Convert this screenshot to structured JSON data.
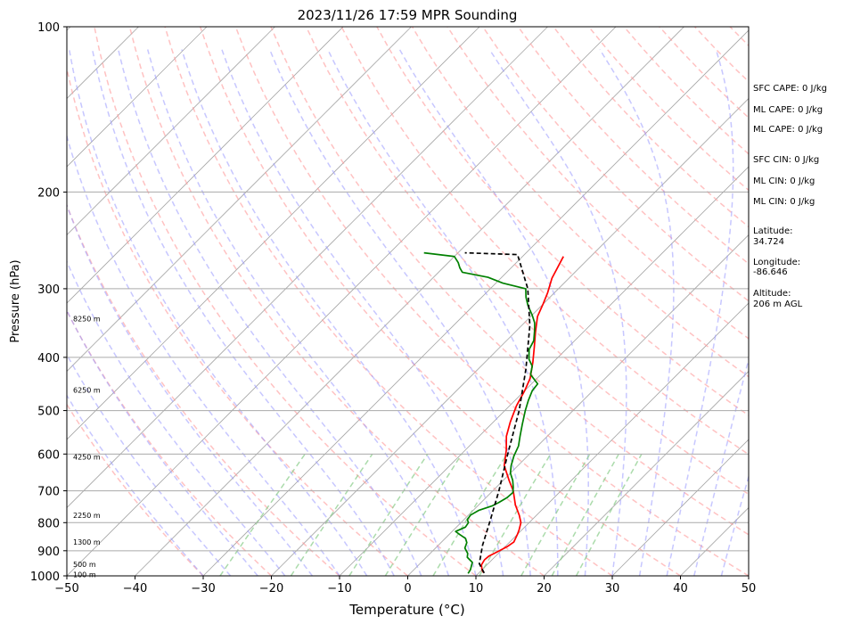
{
  "chart_data": {
    "type": "line",
    "title": "2023/11/26 17:59 MPR Sounding",
    "xlabel": "Temperature (°C)",
    "ylabel": "Pressure (hPa)",
    "xlim": [
      -50,
      50
    ],
    "ylim": [
      1000,
      100
    ],
    "y_scale": "log",
    "x_ticks": [
      "−50",
      "−40",
      "−30",
      "−20",
      "−10",
      "0",
      "10",
      "20",
      "30",
      "40",
      "50"
    ],
    "y_ticks": [
      "100",
      "200",
      "300",
      "400",
      "500",
      "600",
      "700",
      "800",
      "900",
      "1000"
    ],
    "height_labels": [
      {
        "p": 995,
        "label": "100 m"
      },
      {
        "p": 953,
        "label": "500 m"
      },
      {
        "p": 867,
        "label": "1300 m"
      },
      {
        "p": 776,
        "label": "2250 m"
      },
      {
        "p": 607,
        "label": "4250 m"
      },
      {
        "p": 459,
        "label": "6250 m"
      },
      {
        "p": 340,
        "label": "8250 m"
      }
    ],
    "series": [
      {
        "color": "#ff0000",
        "points": [
          [
            10.6,
            986
          ],
          [
            10.0,
            975
          ],
          [
            9.2,
            955
          ],
          [
            8.9,
            935
          ],
          [
            9.0,
            920
          ],
          [
            9.6,
            905
          ],
          [
            10.3,
            885
          ],
          [
            10.6,
            868
          ],
          [
            10.0,
            840
          ],
          [
            9.6,
            825
          ],
          [
            8.8,
            800
          ],
          [
            7.5,
            776
          ],
          [
            5.4,
            743
          ],
          [
            3.0,
            700
          ],
          [
            1.0,
            672
          ],
          [
            -2.0,
            630
          ],
          [
            -4.0,
            590
          ],
          [
            -6.0,
            557
          ],
          [
            -7.5,
            525
          ],
          [
            -9.0,
            490
          ],
          [
            -10.0,
            460
          ],
          [
            -11.0,
            437
          ],
          [
            -13.0,
            408
          ],
          [
            -15.0,
            383
          ],
          [
            -17.0,
            360
          ],
          [
            -19.0,
            337
          ],
          [
            -20.0,
            320
          ],
          [
            -21.0,
            305
          ],
          [
            -22.5,
            287
          ],
          [
            -24.0,
            262
          ]
        ]
      },
      {
        "color": "#008000",
        "points": [
          [
            8.5,
            990
          ],
          [
            8.3,
            975
          ],
          [
            7.9,
            960
          ],
          [
            7.5,
            945
          ],
          [
            6.0,
            925
          ],
          [
            5.5,
            910
          ],
          [
            4.3,
            890
          ],
          [
            3.8,
            870
          ],
          [
            3.0,
            855
          ],
          [
            1.5,
            840
          ],
          [
            0.5,
            830
          ],
          [
            1.3,
            815
          ],
          [
            1.1,
            800
          ],
          [
            0.5,
            790
          ],
          [
            0.3,
            775
          ],
          [
            0.8,
            760
          ],
          [
            2.1,
            746
          ],
          [
            2.6,
            735
          ],
          [
            3.1,
            720
          ],
          [
            3.2,
            705
          ],
          [
            2.5,
            690
          ],
          [
            1.4,
            670
          ],
          [
            0.0,
            650
          ],
          [
            -1.0,
            630
          ],
          [
            -2.0,
            605
          ],
          [
            -2.8,
            580
          ],
          [
            -4.0,
            557
          ],
          [
            -5.4,
            530
          ],
          [
            -7.0,
            500
          ],
          [
            -8.0,
            480
          ],
          [
            -8.9,
            460
          ],
          [
            -9.1,
            447
          ],
          [
            -11.5,
            430
          ],
          [
            -12.5,
            415
          ],
          [
            -14.0,
            403
          ],
          [
            -15.4,
            387
          ],
          [
            -16.0,
            373
          ],
          [
            -17.5,
            356
          ],
          [
            -18.5,
            346
          ],
          [
            -20.0,
            335
          ],
          [
            -22.0,
            322
          ],
          [
            -23.5,
            311
          ],
          [
            -24.8,
            300
          ],
          [
            -29.0,
            293
          ],
          [
            -32.0,
            286
          ],
          [
            -36.5,
            280
          ],
          [
            -37.5,
            275
          ],
          [
            -38.5,
            269
          ],
          [
            -40.0,
            262
          ],
          [
            -45.0,
            258
          ]
        ]
      },
      {
        "color": "#000000",
        "dashed": true,
        "points": [
          [
            10.8,
            988
          ],
          [
            8.7,
            950
          ],
          [
            6.5,
            880
          ],
          [
            4.2,
            800
          ],
          [
            0.9,
            700
          ],
          [
            -3.2,
            600
          ],
          [
            -7.9,
            500
          ],
          [
            -13.0,
            420
          ],
          [
            -18.8,
            350
          ],
          [
            -24.5,
            300
          ],
          [
            -31.0,
            260
          ],
          [
            -39.0,
            258
          ]
        ]
      }
    ]
  },
  "indices": [
    {
      "label": "SFC CAPE: 0 J/kg"
    },
    {
      "label": "ML CAPE: 0 J/kg"
    },
    {
      "label": "ML CAPE: 0 J/kg"
    },
    {
      "label": "SFC CIN: 0 J/kg"
    },
    {
      "label": "ML CIN: 0 J/kg"
    },
    {
      "label": "ML CIN: 0 J/kg"
    }
  ],
  "location": {
    "latitude_label": "Latitude:",
    "latitude_value": "34.724",
    "longitude_label": "Longitude:",
    "longitude_value": "-86.646",
    "altitude_label": "Altitude:",
    "altitude_value": "206 m AGL"
  },
  "colors": {
    "dry_adiabat": "#ff9999",
    "moist_adiabat": "#9999ff",
    "mixing_ratio": "#88cc88",
    "isotherm": "#808080"
  }
}
